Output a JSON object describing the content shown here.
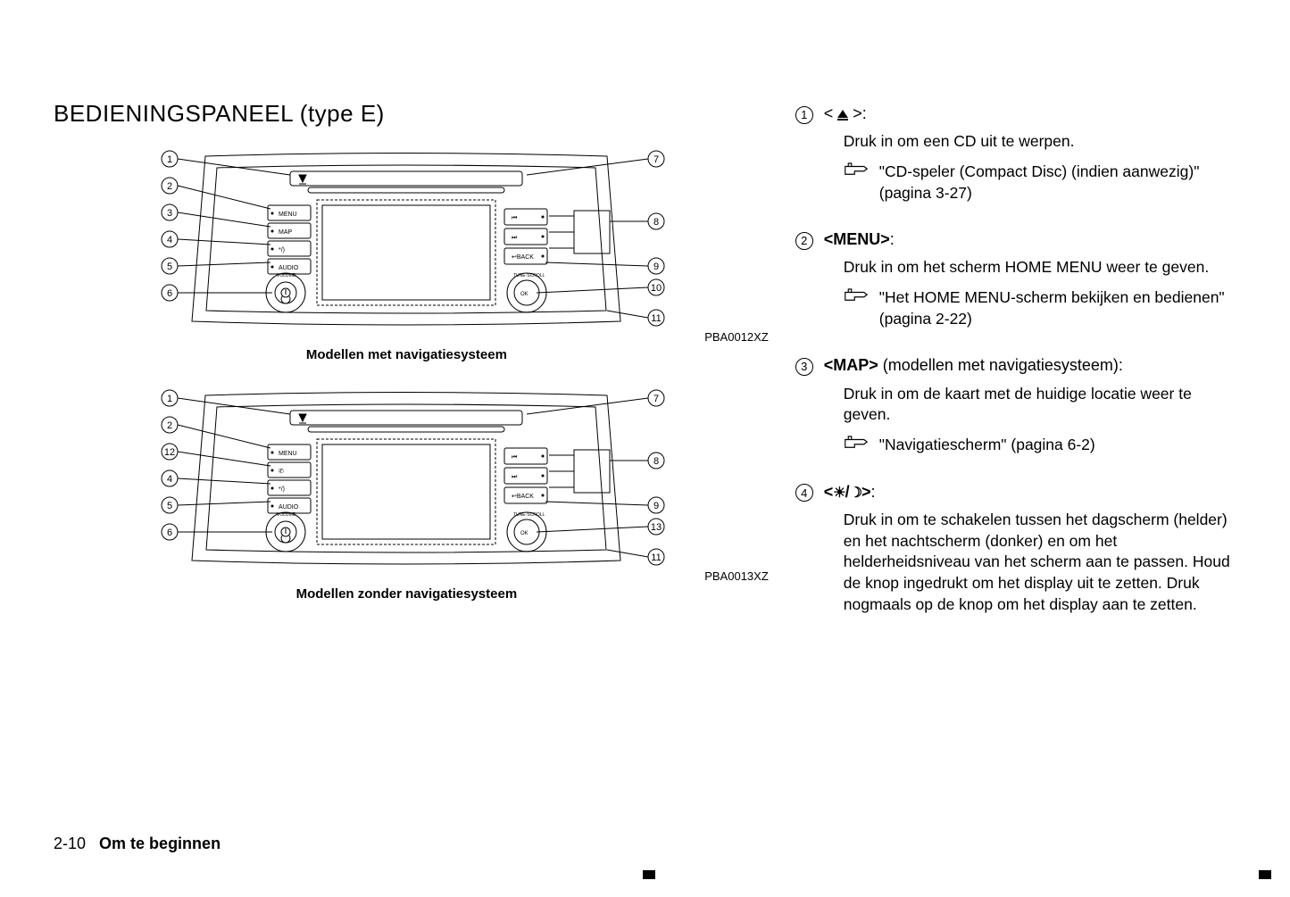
{
  "title": "BEDIENINGSPANEEL (type E)",
  "diagrams": {
    "top": {
      "caption": "Modellen met navigatiesysteem",
      "code": "PBA0012XZ",
      "left_callouts": [
        "1",
        "2",
        "3",
        "4",
        "5",
        "6"
      ],
      "right_callouts": [
        "7",
        "8",
        "9",
        "10",
        "11"
      ],
      "left_buttons": [
        "MENU",
        "MAP",
        "☀/☽",
        "AUDIO"
      ],
      "right_buttons": [
        "⏮",
        "⏭",
        "↩BACK"
      ],
      "knob_right_label": "OK"
    },
    "bottom": {
      "caption": "Modellen zonder navigatiesysteem",
      "code": "PBA0013XZ",
      "left_callouts": [
        "1",
        "2",
        "12",
        "4",
        "5",
        "6"
      ],
      "right_callouts": [
        "7",
        "8",
        "9",
        "13",
        "11"
      ],
      "left_buttons": [
        "MENU",
        "✆",
        "☀/☽",
        "AUDIO"
      ],
      "right_buttons": [
        "⏮",
        "⏭",
        "↩BACK"
      ],
      "knob_right_label": "OK"
    }
  },
  "items": [
    {
      "num": "1",
      "title_prefix": "< ",
      "title_bold": "",
      "title_symbol": "eject",
      "title_suffix": " >:",
      "desc": "Druk in om een CD uit te werpen.",
      "ref": "\"CD-speler (Compact Disc) (indien aanwezig)\" (pagina 3-27)"
    },
    {
      "num": "2",
      "title_bold": "<MENU>",
      "title_suffix": ":",
      "desc": "Druk in om het scherm HOME MENU weer te geven.",
      "ref": "\"Het HOME MENU-scherm bekijken en bedienen\" (pagina 2-22)"
    },
    {
      "num": "3",
      "title_bold": "<MAP>",
      "title_suffix": " (modellen met navigatiesysteem):",
      "desc": "Druk in om de kaart met de huidige locatie weer te geven.",
      "ref": "\"Navigatiescherm\" (pagina 6-2)"
    },
    {
      "num": "4",
      "title_bold_html": "sunmoon",
      "title_suffix": ":",
      "desc": "Druk in om te schakelen tussen het dagscherm (helder) en het nachtscherm (donker) en om het helderheidsniveau van het scherm aan te passen. Houd de knop ingedrukt om het display uit te zetten. Druk nogmaals op de knop om het display aan te zetten."
    }
  ],
  "footer": {
    "page": "2-10",
    "section": "Om te beginnen"
  }
}
